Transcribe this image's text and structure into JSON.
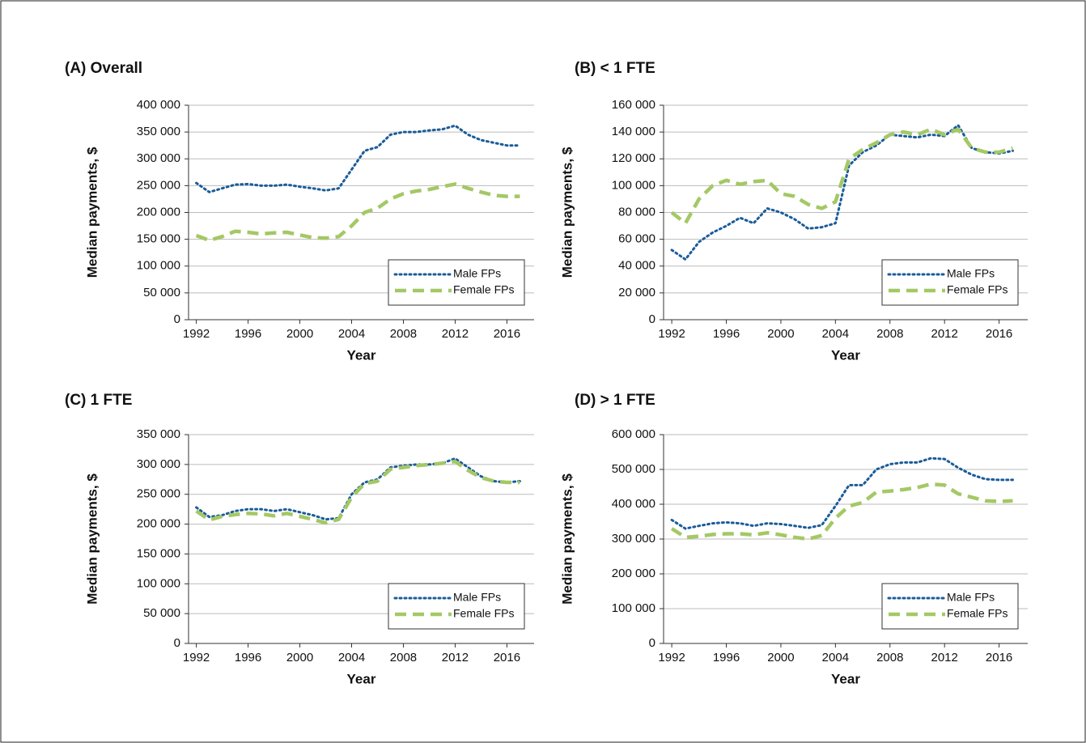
{
  "chart_data": [
    {
      "type": "line",
      "title": "(A) Overall",
      "xlabel": "Year",
      "ylabel": "Median payments, $",
      "grid": true,
      "legend": "lower right",
      "x": [
        1992,
        1993,
        1994,
        1995,
        1996,
        1997,
        1998,
        1999,
        2000,
        2001,
        2002,
        2003,
        2004,
        2005,
        2006,
        2007,
        2008,
        2009,
        2010,
        2011,
        2012,
        2013,
        2014,
        2015,
        2016,
        2017
      ],
      "xlim": [
        1991.4,
        2018.1
      ],
      "xticks": [
        1992,
        1996,
        2000,
        2004,
        2008,
        2012,
        2016
      ],
      "ylim": [
        0,
        400000
      ],
      "yticks": [
        0,
        {
          "value": 50000,
          "label": "50 000"
        },
        {
          "value": 100000,
          "label": "100 000"
        },
        {
          "value": 150000,
          "label": "150 000"
        },
        {
          "value": 200000,
          "label": "200 000"
        },
        {
          "value": 250000,
          "label": "250 000"
        },
        {
          "value": 300000,
          "label": "300 000"
        },
        {
          "value": 350000,
          "label": "350 000"
        },
        {
          "value": 400000,
          "label": "400 000"
        }
      ],
      "series": [
        {
          "name": "Male FPs",
          "color": "#1a5c99",
          "values": [
            255000,
            238000,
            245000,
            252000,
            253000,
            250000,
            250000,
            252000,
            248000,
            245000,
            241000,
            245000,
            280000,
            315000,
            322000,
            345000,
            350000,
            350000,
            353000,
            355000,
            362000,
            345000,
            335000,
            330000,
            325000,
            325000
          ]
        },
        {
          "name": "Female FPs",
          "color": "#a4c865",
          "values": [
            157000,
            148000,
            155000,
            165000,
            163000,
            160000,
            162000,
            163000,
            158000,
            153000,
            152000,
            155000,
            175000,
            200000,
            208000,
            225000,
            235000,
            240000,
            243000,
            248000,
            253000,
            245000,
            238000,
            232000,
            230000,
            230000
          ]
        }
      ]
    },
    {
      "type": "line",
      "title": "(B) < 1 FTE",
      "xlabel": "Year",
      "ylabel": "Median payments, $",
      "grid": true,
      "legend": "lower right",
      "x": [
        1992,
        1993,
        1994,
        1995,
        1996,
        1997,
        1998,
        1999,
        2000,
        2001,
        2002,
        2003,
        2004,
        2005,
        2006,
        2007,
        2008,
        2009,
        2010,
        2011,
        2012,
        2013,
        2014,
        2015,
        2016,
        2017
      ],
      "xlim": [
        1991.4,
        2018.1
      ],
      "xticks": [
        1992,
        1996,
        2000,
        2004,
        2008,
        2012,
        2016
      ],
      "ylim": [
        0,
        160000
      ],
      "yticks": [
        0,
        {
          "value": 20000,
          "label": "20 000"
        },
        {
          "value": 40000,
          "label": "40 000"
        },
        {
          "value": 60000,
          "label": "60 000"
        },
        {
          "value": 80000,
          "label": "80 000"
        },
        {
          "value": 100000,
          "label": "100 000"
        },
        {
          "value": 120000,
          "label": "120 000"
        },
        {
          "value": 140000,
          "label": "140 000"
        },
        {
          "value": 160000,
          "label": "160 000"
        }
      ],
      "series": [
        {
          "name": "Male FPs",
          "color": "#1a5c99",
          "values": [
            52000,
            45000,
            58000,
            65000,
            70000,
            76000,
            72000,
            83000,
            80000,
            75000,
            68000,
            69000,
            72000,
            115000,
            125000,
            130000,
            138000,
            137000,
            136000,
            138000,
            137000,
            145000,
            128000,
            125000,
            124000,
            126000
          ]
        },
        {
          "name": "Female FPs",
          "color": "#a4c865",
          "values": [
            80000,
            72000,
            90000,
            100000,
            104000,
            101000,
            103000,
            104000,
            94000,
            92000,
            86000,
            83000,
            88000,
            120000,
            127000,
            132000,
            138000,
            140000,
            138000,
            142000,
            138000,
            142000,
            128000,
            125000,
            125000,
            128000
          ]
        }
      ]
    },
    {
      "type": "line",
      "title": "(C) 1 FTE",
      "xlabel": "Year",
      "ylabel": "Median payments, $",
      "grid": true,
      "legend": "lower right",
      "x": [
        1992,
        1993,
        1994,
        1995,
        1996,
        1997,
        1998,
        1999,
        2000,
        2001,
        2002,
        2003,
        2004,
        2005,
        2006,
        2007,
        2008,
        2009,
        2010,
        2011,
        2012,
        2013,
        2014,
        2015,
        2016,
        2017
      ],
      "xlim": [
        1991.4,
        2018.1
      ],
      "xticks": [
        1992,
        1996,
        2000,
        2004,
        2008,
        2012,
        2016
      ],
      "ylim": [
        0,
        350000
      ],
      "yticks": [
        0,
        {
          "value": 50000,
          "label": "50 000"
        },
        {
          "value": 100000,
          "label": "100 000"
        },
        {
          "value": 150000,
          "label": "150 000"
        },
        {
          "value": 200000,
          "label": "200 000"
        },
        {
          "value": 250000,
          "label": "250 000"
        },
        {
          "value": 300000,
          "label": "300 000"
        },
        {
          "value": 350000,
          "label": "350 000"
        }
      ],
      "series": [
        {
          "name": "Male FPs",
          "color": "#1a5c99",
          "values": [
            228000,
            212000,
            215000,
            222000,
            225000,
            225000,
            222000,
            225000,
            220000,
            215000,
            208000,
            210000,
            250000,
            270000,
            275000,
            295000,
            298000,
            300000,
            300000,
            302000,
            310000,
            295000,
            280000,
            272000,
            270000,
            272000
          ]
        },
        {
          "name": "Female FPs",
          "color": "#a4c865",
          "values": [
            222000,
            207000,
            213000,
            216000,
            218000,
            217000,
            214000,
            218000,
            213000,
            208000,
            202000,
            208000,
            245000,
            268000,
            272000,
            292000,
            295000,
            298000,
            300000,
            302000,
            305000,
            290000,
            278000,
            272000,
            270000,
            270000
          ]
        }
      ]
    },
    {
      "type": "line",
      "title": "(D) > 1 FTE",
      "xlabel": "Year",
      "ylabel": "Median payments, $",
      "grid": true,
      "legend": "lower right",
      "x": [
        1992,
        1993,
        1994,
        1995,
        1996,
        1997,
        1998,
        1999,
        2000,
        2001,
        2002,
        2003,
        2004,
        2005,
        2006,
        2007,
        2008,
        2009,
        2010,
        2011,
        2012,
        2013,
        2014,
        2015,
        2016,
        2017
      ],
      "xlim": [
        1991.4,
        2018.1
      ],
      "xticks": [
        1992,
        1996,
        2000,
        2004,
        2008,
        2012,
        2016
      ],
      "ylim": [
        0,
        600000
      ],
      "yticks": [
        0,
        {
          "value": 100000,
          "label": "100 000"
        },
        {
          "value": 200000,
          "label": "200 000"
        },
        {
          "value": 300000,
          "label": "300 000"
        },
        {
          "value": 400000,
          "label": "400 000"
        },
        {
          "value": 500000,
          "label": "500 000"
        },
        {
          "value": 600000,
          "label": "600 000"
        }
      ],
      "series": [
        {
          "name": "Male FPs",
          "color": "#1a5c99",
          "values": [
            355000,
            330000,
            338000,
            345000,
            348000,
            345000,
            338000,
            345000,
            343000,
            338000,
            332000,
            340000,
            395000,
            455000,
            455000,
            500000,
            515000,
            520000,
            520000,
            532000,
            530000,
            505000,
            485000,
            472000,
            470000,
            470000
          ]
        },
        {
          "name": "Female FPs",
          "color": "#a4c865",
          "values": [
            330000,
            305000,
            308000,
            313000,
            315000,
            315000,
            312000,
            318000,
            312000,
            305000,
            300000,
            310000,
            360000,
            395000,
            405000,
            435000,
            438000,
            442000,
            448000,
            458000,
            455000,
            430000,
            420000,
            410000,
            408000,
            410000
          ]
        }
      ]
    }
  ]
}
